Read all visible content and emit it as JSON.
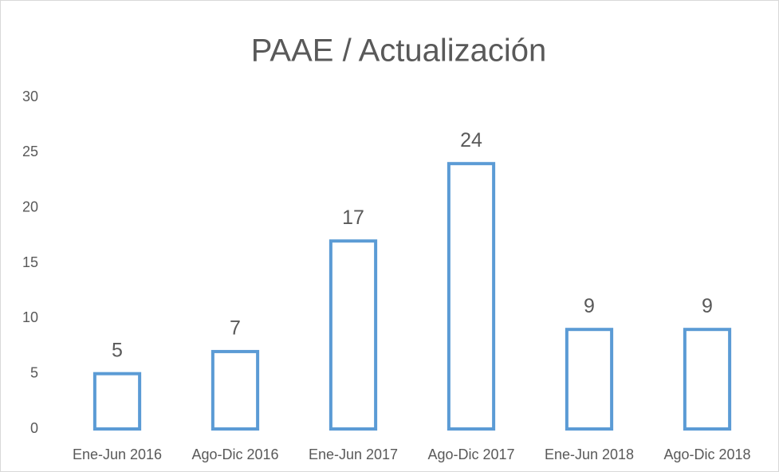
{
  "chart_data": {
    "type": "bar",
    "title": "PAAE / Actualización",
    "categories": [
      "Ene-Jun 2016",
      "Ago-Dic 2016",
      "Ene-Jun 2017",
      "Ago-Dic 2017",
      "Ene-Jun 2018",
      "Ago-Dic 2018"
    ],
    "values": [
      5,
      7,
      17,
      24,
      9,
      9
    ],
    "color": "#5b9bd5",
    "ylim": [
      0,
      30
    ],
    "yticks": [
      0,
      5,
      10,
      15,
      20,
      25,
      30
    ],
    "grid": false
  }
}
